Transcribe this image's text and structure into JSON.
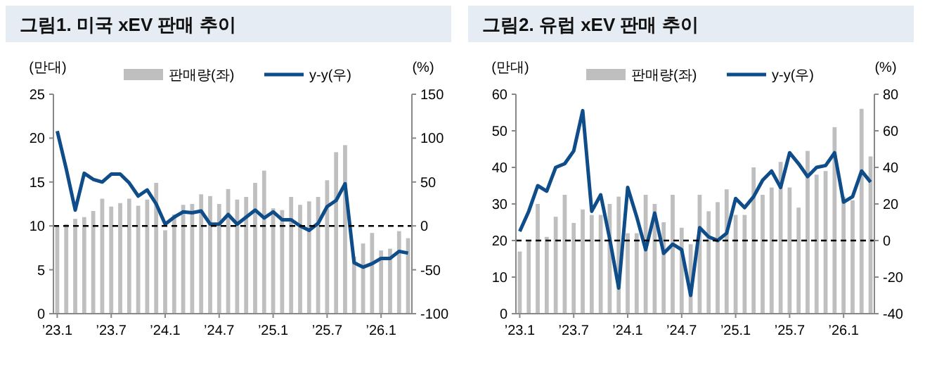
{
  "chart_data": [
    {
      "type": "bar",
      "title": "그림1. 미국 xEV 판매 추이",
      "ylabel": "(만대)",
      "y2label": "(%)",
      "categories": [
        "’23.1",
        null,
        null,
        null,
        null,
        null,
        "’23.7",
        null,
        null,
        null,
        null,
        null,
        "’24.1",
        null,
        null,
        null,
        null,
        null,
        "’24.7",
        null,
        null,
        null,
        null,
        null,
        "’25.1",
        null,
        null,
        null,
        null,
        null,
        "’25.7",
        null,
        null,
        null,
        null,
        null,
        "’26.1",
        null,
        null,
        null
      ],
      "series": [
        {
          "name": "판매량(좌)",
          "color": "#bfbfbf",
          "values": [
            10.0,
            10.2,
            10.8,
            11.0,
            11.7,
            13.1,
            12.2,
            12.6,
            13.1,
            12.3,
            13.0,
            14.9,
            9.5,
            11.3,
            12.4,
            12.5,
            13.6,
            13.4,
            12.5,
            14.2,
            13.0,
            13.3,
            14.9,
            16.3,
            12.0,
            11.8,
            13.3,
            12.4,
            12.8,
            13.3,
            15.2,
            18.4,
            19.2,
            6.5,
            8.0,
            9.2,
            7.2,
            7.4,
            9.4,
            8.6
          ]
        },
        {
          "name": "y-y(우)",
          "type": "line",
          "axis": "y2",
          "color": "#0f4c8a",
          "values": [
            108,
            65,
            18,
            60,
            53,
            50,
            59,
            59,
            49,
            34,
            41,
            25,
            2,
            10,
            16,
            15,
            17,
            2,
            2,
            13,
            2,
            10,
            18,
            9,
            16,
            7,
            7,
            0,
            -5,
            3,
            22,
            29,
            48,
            -42,
            -47,
            -43,
            -37,
            -37,
            -29,
            -31
          ]
        }
      ],
      "ylim": [
        0,
        25
      ],
      "yticks": [
        0,
        5,
        10,
        15,
        20,
        25
      ],
      "y2lim": [
        -100,
        150
      ],
      "y2ticks": [
        -100,
        -50,
        0,
        50,
        100,
        150
      ],
      "ref_lines": [
        {
          "axis": "y2",
          "value": 0,
          "color": "#000000",
          "line_style": "dashed"
        }
      ],
      "legend": "top",
      "grid": false,
      "marker": "none",
      "line_style": "solid"
    },
    {
      "type": "bar",
      "title": "그림2. 유럽 xEV 판매 추이",
      "ylabel": "(만대)",
      "y2label": "(%)",
      "categories": [
        "’23.1",
        null,
        null,
        null,
        null,
        null,
        "’23.7",
        null,
        null,
        null,
        null,
        null,
        "’24.1",
        null,
        null,
        null,
        null,
        null,
        "’24.7",
        null,
        null,
        null,
        null,
        null,
        "’25.1",
        null,
        null,
        null,
        null,
        null,
        "’25.7",
        null,
        null,
        null,
        null,
        null,
        "’26.1",
        null,
        null,
        null
      ],
      "series": [
        {
          "name": "판매량(좌)",
          "color": "#bfbfbf",
          "values": [
            17,
            20,
            30,
            21,
            26.5,
            32.5,
            24.8,
            28.5,
            27,
            27,
            30,
            32,
            22,
            22,
            32.5,
            30,
            25,
            32.5,
            23.5,
            19,
            32.5,
            28,
            30.5,
            34,
            27,
            27,
            40,
            32.5,
            34.5,
            41.5,
            34.5,
            29,
            44.5,
            38,
            39,
            51,
            32,
            31,
            56,
            43
          ]
        },
        {
          "name": "y-y(우)",
          "type": "line",
          "axis": "y2",
          "color": "#0f4c8a",
          "values": [
            5,
            16,
            30,
            27,
            40,
            42,
            49,
            71,
            16,
            25,
            1,
            -26,
            29,
            13,
            -5,
            15,
            -7,
            -2,
            -5,
            -30,
            7,
            2,
            0,
            4,
            23,
            18,
            24,
            33,
            38,
            29,
            48,
            42,
            35,
            40,
            41,
            48,
            21,
            24,
            38,
            32
          ]
        }
      ],
      "ylim": [
        0,
        60
      ],
      "yticks": [
        0,
        10,
        20,
        30,
        40,
        50,
        60
      ],
      "y2lim": [
        -40,
        80
      ],
      "y2ticks": [
        -40,
        -20,
        0,
        20,
        40,
        60,
        80
      ],
      "ref_lines": [
        {
          "axis": "y2",
          "value": 0,
          "color": "#000000",
          "line_style": "dashed"
        }
      ],
      "legend": "top",
      "grid": false,
      "marker": "none",
      "line_style": "solid"
    }
  ]
}
